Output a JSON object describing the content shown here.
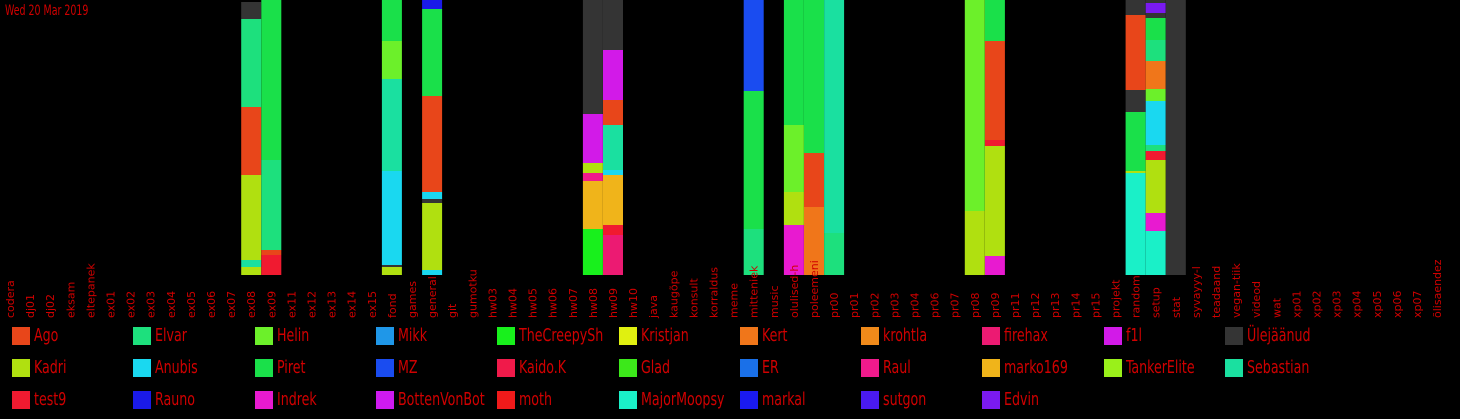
{
  "chart_data": {
    "type": "bar",
    "stacked": true,
    "title": "Wed 20 Mar 2019",
    "categories": [
      "codera",
      "dj01",
      "dj02",
      "eksam",
      "eltepanek",
      "ex01",
      "ex02",
      "ex03",
      "ex04",
      "ex05",
      "ex06",
      "ex07",
      "ex08",
      "ex09",
      "ex11",
      "ex12",
      "ex13",
      "ex14",
      "ex15",
      "fond",
      "games",
      "general",
      "git",
      "gumotku",
      "hw03",
      "hw04",
      "hw05",
      "hw06",
      "hw07",
      "hw08",
      "hw09",
      "hw10",
      "java",
      "kaugõpe",
      "konsult",
      "korraldus",
      "meme",
      "mitteniek",
      "music",
      "olulised-h",
      "poleemeni",
      "pr00",
      "pr01",
      "pr02",
      "pr03",
      "pr04",
      "pr06",
      "pr07",
      "pr08",
      "pr09",
      "pr11",
      "pr12",
      "pr13",
      "pr14",
      "pr15",
      "projekt",
      "random",
      "setup",
      "stat",
      "syvayyy-l",
      "teadaand",
      "vegan-tiik",
      "videod",
      "wat",
      "xp01",
      "xp02",
      "xp03",
      "xp04",
      "xp05",
      "xp06",
      "xp07",
      "õlisaendez"
    ],
    "ylim": [
      0,
      275
    ],
    "stacks": [
      {
        "category": "ex08",
        "segments": [
          {
            "name": "Kadri",
            "value": 8
          },
          {
            "name": "Sebastian",
            "value": 7
          },
          {
            "name": "Kadri",
            "value": 85
          },
          {
            "name": "Ago",
            "value": 68
          },
          {
            "name": "Elvar",
            "value": 88
          },
          {
            "name": "Ülejäänud",
            "value": 17
          }
        ]
      },
      {
        "category": "ex09",
        "segments": [
          {
            "name": "test9",
            "value": 20
          },
          {
            "name": "Ago",
            "value": 5
          },
          {
            "name": "Elvar",
            "value": 90
          },
          {
            "name": "Piret",
            "value": 160
          }
        ]
      },
      {
        "category": "fond",
        "segments": [
          {
            "name": "Kadri",
            "value": 8
          },
          {
            "name": "Ülejäänud",
            "value": 2
          },
          {
            "name": "Anubis",
            "value": 94
          },
          {
            "name": "Sebastian",
            "value": 92
          },
          {
            "name": "Helin",
            "value": 38
          },
          {
            "name": "Piret",
            "value": 41
          }
        ]
      },
      {
        "category": "general",
        "segments": [
          {
            "name": "Anubis",
            "value": 5
          },
          {
            "name": "Kadri",
            "value": 67
          },
          {
            "name": "Ülejäänud",
            "value": 4
          },
          {
            "name": "Anubis",
            "value": 7
          },
          {
            "name": "Ago",
            "value": 52
          },
          {
            "name": "Ago",
            "value": 44
          },
          {
            "name": "Piret",
            "value": 87
          },
          {
            "name": "Rauno",
            "value": 9
          }
        ]
      },
      {
        "category": "hw08",
        "segments": [
          {
            "name": "TheCreepySh",
            "value": 46
          },
          {
            "name": "marko169",
            "value": 48
          },
          {
            "name": "Raul",
            "value": 8
          },
          {
            "name": "Kadri",
            "value": 10
          },
          {
            "name": "f1l",
            "value": 49
          },
          {
            "name": "Ülejäänud",
            "value": 114
          }
        ]
      },
      {
        "category": "hw09",
        "segments": [
          {
            "name": "firehax",
            "value": 40
          },
          {
            "name": "test9",
            "value": 10
          },
          {
            "name": "marko169",
            "value": 50
          },
          {
            "name": "Anubis",
            "value": 5
          },
          {
            "name": "Sebastian",
            "value": 45
          },
          {
            "name": "Ago",
            "value": 25
          },
          {
            "name": "f1l",
            "value": 50
          },
          {
            "name": "Ülejäänud",
            "value": 50
          }
        ]
      },
      {
        "category": "mitteniek",
        "segments": [
          {
            "name": "Elvar",
            "value": 46
          },
          {
            "name": "Piret",
            "value": 138
          },
          {
            "name": "MZ",
            "value": 91
          }
        ]
      },
      {
        "category": "olulised-h",
        "segments": [
          {
            "name": "Indrek",
            "value": 50
          },
          {
            "name": "Kadri",
            "value": 33
          },
          {
            "name": "Helin",
            "value": 67
          },
          {
            "name": "Piret",
            "value": 125
          }
        ]
      },
      {
        "category": "poleemeni",
        "segments": [
          {
            "name": "Kert",
            "value": 68
          },
          {
            "name": "Ago",
            "value": 54
          },
          {
            "name": "Piret",
            "value": 153
          }
        ]
      },
      {
        "category": "pr00",
        "segments": [
          {
            "name": "Elvar",
            "value": 42
          },
          {
            "name": "Sebastian",
            "value": 233
          }
        ]
      },
      {
        "category": "pr08",
        "segments": [
          {
            "name": "Kadri",
            "value": 64
          },
          {
            "name": "Helin",
            "value": 211
          }
        ]
      },
      {
        "category": "pr09",
        "segments": [
          {
            "name": "Indrek",
            "value": 19
          },
          {
            "name": "Kadri",
            "value": 110
          },
          {
            "name": "test9",
            "value": 6
          },
          {
            "name": "Ago",
            "value": 99
          },
          {
            "name": "Piret",
            "value": 41
          }
        ]
      },
      {
        "category": "random",
        "segments": [
          {
            "name": "MajorMoopsy",
            "value": 102
          },
          {
            "name": "Kadri",
            "value": 2
          },
          {
            "name": "Piret",
            "value": 59
          },
          {
            "name": "Ülejäänud",
            "value": 22
          },
          {
            "name": "Ago",
            "value": 75
          },
          {
            "name": "Ülejäänud",
            "value": 15
          }
        ]
      },
      {
        "category": "setup",
        "segments": [
          {
            "name": "MajorMoopsy",
            "value": 44
          },
          {
            "name": "Indrek",
            "value": 18
          },
          {
            "name": "Kadri",
            "value": 53
          },
          {
            "name": "test9",
            "value": 9
          },
          {
            "name": "Elvar",
            "value": 6
          },
          {
            "name": "Anubis",
            "value": 44
          },
          {
            "name": "Helin",
            "value": 12
          },
          {
            "name": "Kert",
            "value": 28
          },
          {
            "name": "Elvar",
            "value": 21
          },
          {
            "name": "Piret",
            "value": 22
          },
          {
            "name": "Ülejäänud",
            "value": 5
          },
          {
            "name": "Edvin",
            "value": 10
          },
          {
            "name": "Ülejäänud",
            "value": 4
          }
        ]
      },
      {
        "category": "stat",
        "segments": [
          {
            "name": "Ülejäänud",
            "value": 96
          },
          {
            "name": "Ülejäänud",
            "value": 179
          }
        ]
      }
    ]
  },
  "legend": {
    "entries": [
      {
        "label": "Ago",
        "color": "#e8461a"
      },
      {
        "label": "Elvar",
        "color": "#1de07d"
      },
      {
        "label": "Helin",
        "color": "#6cf02a"
      },
      {
        "label": "Mikk",
        "color": "#1f97e8"
      },
      {
        "label": "TheCreepySh",
        "color": "#18f01c"
      },
      {
        "label": "Kristjan",
        "color": "#e0f010"
      },
      {
        "label": "Kert",
        "color": "#f0761a"
      },
      {
        "label": "krohtla",
        "color": "#f08a1a"
      },
      {
        "label": "firehax",
        "color": "#ec1a72"
      },
      {
        "label": "f1l",
        "color": "#d21ae8"
      },
      {
        "label": "Ülejäänud",
        "color": "#343434"
      },
      {
        "label": "Kadri",
        "color": "#b0e010"
      },
      {
        "label": "Anubis",
        "color": "#1ad8f0"
      },
      {
        "label": "Piret",
        "color": "#1ae04a"
      },
      {
        "label": "MZ",
        "color": "#1a4cf0"
      },
      {
        "label": "Kaido.K",
        "color": "#f01a4a"
      },
      {
        "label": "Glad",
        "color": "#3ce81a"
      },
      {
        "label": "ER",
        "color": "#1a70e8"
      },
      {
        "label": "Raul",
        "color": "#f01a8c"
      },
      {
        "label": "marko169",
        "color": "#f0b41a"
      },
      {
        "label": "TankerElite",
        "color": "#9af01a"
      },
      {
        "label": "Sebastian",
        "color": "#1ae0a0"
      },
      {
        "label": "test9",
        "color": "#f01a30"
      },
      {
        "label": "Rauno",
        "color": "#1a1ae8"
      },
      {
        "label": "Indrek",
        "color": "#e81ad0"
      },
      {
        "label": "BottenVonBot",
        "color": "#ce1af0"
      },
      {
        "label": "moth",
        "color": "#f01a1a"
      },
      {
        "label": "MajorMoopsy",
        "color": "#1af0c8"
      },
      {
        "label": "markal",
        "color": "#1a1af0"
      },
      {
        "label": "sutgon",
        "color": "#4a1af0"
      },
      {
        "label": "Edvin",
        "color": "#7a1af0"
      }
    ]
  }
}
